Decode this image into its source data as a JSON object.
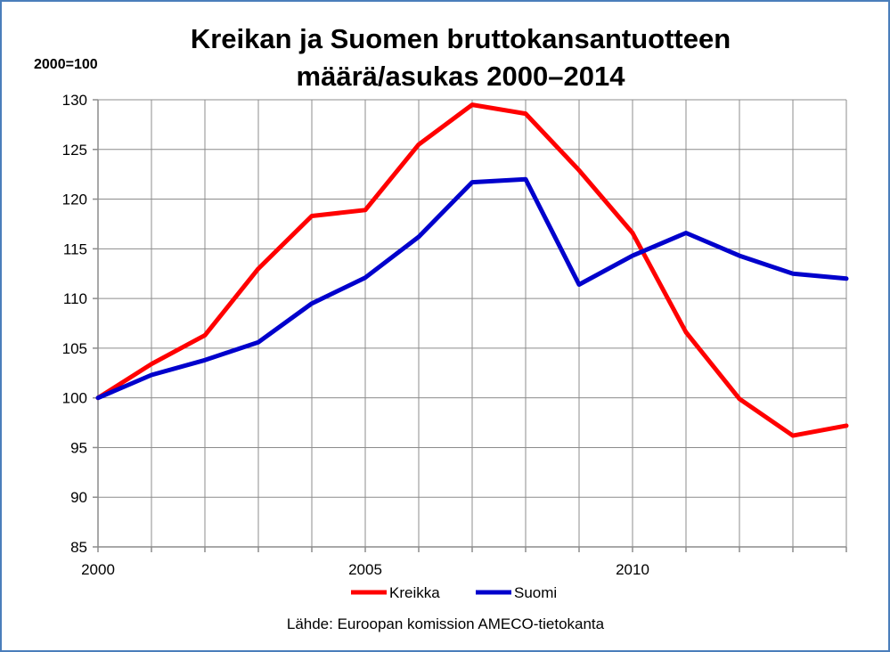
{
  "chart_data": {
    "type": "line",
    "title_lines": [
      "Kreikan ja Suomen bruttokansantuotteen",
      "määrä/asukas 2000–2014"
    ],
    "unit_label": "2000=100",
    "source": "Lähde: Euroopan komission AMECO-tietokanta",
    "x": [
      2000,
      2001,
      2002,
      2003,
      2004,
      2005,
      2006,
      2007,
      2008,
      2009,
      2010,
      2011,
      2012,
      2013,
      2014
    ],
    "x_tick_labels": [
      "2000",
      "2005",
      "2010"
    ],
    "x_tick_values": [
      2000,
      2005,
      2010
    ],
    "xlim": [
      2000,
      2014
    ],
    "ylim": [
      85,
      130
    ],
    "y_ticks": [
      85,
      90,
      95,
      100,
      105,
      110,
      115,
      120,
      125,
      130
    ],
    "y_tick_labels": [
      "85",
      "90",
      "95",
      "100",
      "105",
      "110",
      "115",
      "120",
      "125",
      "130"
    ],
    "grid": true,
    "legend_position": "bottom",
    "series": [
      {
        "name": "Kreikka",
        "color": "#ff0000",
        "values": [
          100.0,
          103.4,
          106.3,
          113.0,
          118.3,
          118.9,
          125.5,
          129.5,
          128.6,
          122.9,
          116.6,
          106.6,
          99.9,
          96.2,
          97.2
        ]
      },
      {
        "name": "Suomi",
        "color": "#0000cc",
        "values": [
          100.0,
          102.3,
          103.8,
          105.6,
          109.5,
          112.1,
          116.2,
          121.7,
          122.0,
          111.4,
          114.3,
          116.6,
          114.3,
          112.5,
          112.0
        ]
      }
    ]
  }
}
